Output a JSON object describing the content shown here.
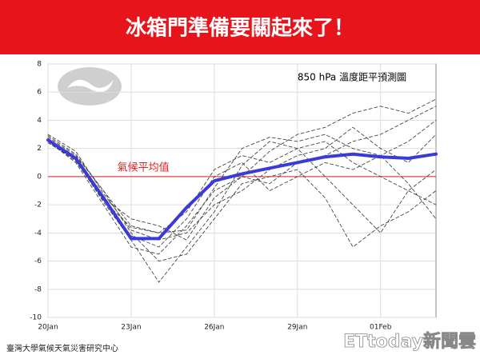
{
  "banner": {
    "title": "冰箱門準備要關起來了！"
  },
  "footer": {
    "source": "臺灣大學氣候天氣災害研究中心",
    "watermark": "ETtoday新聞雲"
  },
  "chart_data": {
    "type": "line",
    "title": "850 hPa 溫度距平預測圖",
    "annotation": "氣候平均值",
    "reference_line": 0,
    "reference_color": "#e02020",
    "categories": [
      "20Jan",
      null,
      null,
      "23Jan",
      null,
      null,
      "26Jan",
      null,
      null,
      "29Jan",
      null,
      null,
      "01Feb",
      null,
      null
    ],
    "ylim": [
      -10,
      8
    ],
    "yticks": [
      8,
      6,
      4,
      2,
      0,
      -2,
      -4,
      -6,
      -8,
      -10
    ],
    "grid": true,
    "series": [
      {
        "color": "#444444",
        "line_style": "dashed",
        "values": [
          2.8,
          1.5,
          -1.0,
          -3.5,
          -4.0,
          -2.5,
          0.5,
          1.5,
          1.0,
          2.0,
          2.5,
          1.0,
          0.0,
          -1.0,
          -2.0
        ]
      },
      {
        "color": "#444444",
        "line_style": "dashed",
        "values": [
          2.5,
          1.0,
          -2.0,
          -5.0,
          -5.5,
          -3.5,
          -1.0,
          0.0,
          -0.5,
          1.0,
          1.5,
          2.5,
          3.0,
          4.0,
          5.0
        ]
      },
      {
        "color": "#444444",
        "line_style": "dashed",
        "values": [
          3.0,
          1.8,
          -1.2,
          -3.8,
          -4.5,
          -4.0,
          -2.0,
          -1.0,
          0.5,
          1.5,
          2.0,
          3.5,
          2.0,
          1.0,
          3.0
        ]
      },
      {
        "color": "#444444",
        "line_style": "dashed",
        "values": [
          2.4,
          1.2,
          -1.8,
          -4.5,
          -7.5,
          -5.0,
          -2.5,
          0.8,
          2.5,
          2.0,
          0.0,
          -2.0,
          -4.0,
          -1.0,
          0.5
        ]
      },
      {
        "color": "#444444",
        "line_style": "dashed",
        "values": [
          2.7,
          1.4,
          -1.5,
          -3.0,
          -3.5,
          -4.5,
          -1.5,
          0.0,
          1.8,
          3.0,
          3.5,
          4.5,
          5.0,
          4.5,
          5.5
        ]
      },
      {
        "color": "#444444",
        "line_style": "dashed",
        "values": [
          2.6,
          1.3,
          -1.6,
          -4.2,
          -5.0,
          -3.0,
          0.0,
          1.0,
          -1.0,
          0.0,
          1.0,
          0.5,
          1.5,
          -0.5,
          -3.0
        ]
      },
      {
        "color": "#444444",
        "line_style": "dashed",
        "values": [
          2.9,
          1.6,
          -1.0,
          -4.0,
          -6.0,
          -5.5,
          -3.0,
          -0.5,
          0.0,
          0.5,
          -1.5,
          -5.0,
          -3.5,
          -2.5,
          -1.0
        ]
      },
      {
        "color": "#444444",
        "line_style": "dashed",
        "values": [
          2.5,
          1.1,
          -1.7,
          -3.6,
          -4.0,
          -3.8,
          -0.8,
          2.0,
          2.8,
          2.5,
          3.0,
          2.0,
          1.5,
          2.5,
          4.0
        ]
      },
      {
        "color": "#3a3ad8",
        "line_style": "solid",
        "values": [
          2.6,
          1.3,
          -1.5,
          -4.4,
          -4.4,
          -2.2,
          -0.3,
          0.2,
          0.6,
          1.0,
          1.4,
          1.6,
          1.4,
          1.3,
          1.6
        ]
      }
    ]
  }
}
